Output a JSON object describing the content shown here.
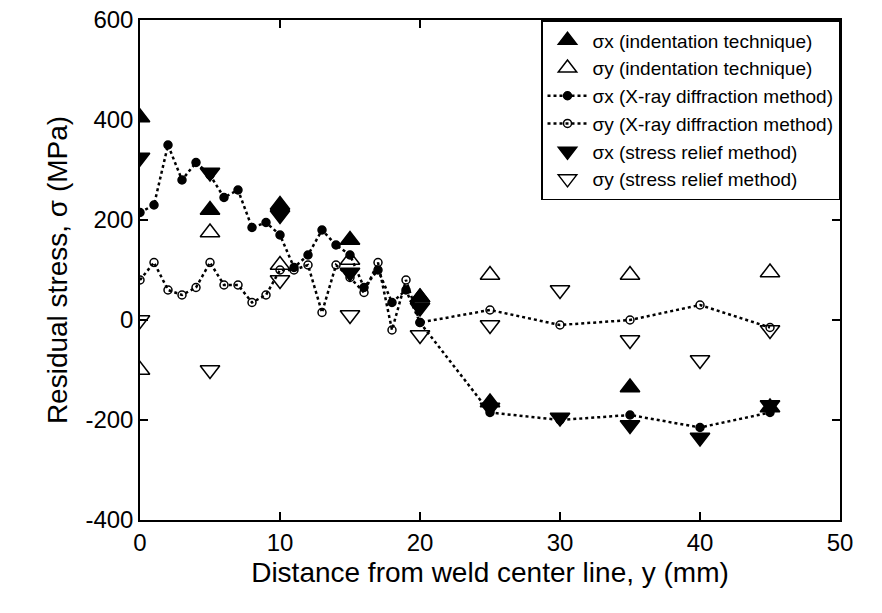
{
  "chart_data": {
    "type": "scatter",
    "x_label": "Distance from weld center line, y (mm)",
    "y_label": "Residual stress, σ (MPa)",
    "xlim": [
      0,
      50
    ],
    "xticks": [
      0,
      10,
      20,
      30,
      40,
      50
    ],
    "ylim": [
      -400,
      600
    ],
    "yticks": [
      -400,
      -200,
      0,
      200,
      400,
      600
    ],
    "grid": false,
    "legend": "upper right",
    "series": [
      {
        "name": "σx (indentation technique)",
        "color": "#000000",
        "marker": "triangle-up",
        "line_style": "none",
        "x": [
          0,
          5,
          10,
          15,
          20,
          25,
          35,
          45
        ],
        "values": [
          405,
          220,
          230,
          160,
          45,
          -165,
          -135,
          -175
        ]
      },
      {
        "name": "σy (indentation technique)",
        "color": "#000000",
        "marker": "triangle-up-open",
        "line_style": "none",
        "x": [
          0,
          5,
          10,
          15,
          20,
          25,
          35,
          45
        ],
        "values": [
          -100,
          175,
          110,
          120,
          45,
          90,
          90,
          95
        ]
      },
      {
        "name": "σx (X-ray diffraction method)",
        "color": "#000000",
        "marker": "circle",
        "line_style": "dotted",
        "x": [
          0,
          1,
          2,
          3,
          4,
          5,
          6,
          7,
          8,
          9,
          10,
          11,
          12,
          13,
          14,
          15,
          16,
          17,
          18,
          19,
          20,
          25,
          30,
          35,
          40,
          45
        ],
        "values": [
          215,
          230,
          350,
          280,
          315,
          290,
          245,
          260,
          185,
          195,
          170,
          105,
          130,
          180,
          150,
          130,
          65,
          100,
          35,
          60,
          -5,
          -185,
          -200,
          -190,
          -215,
          -185
        ]
      },
      {
        "name": "σy (X-ray diffraction method)",
        "color": "#000000",
        "marker": "circle-open",
        "line_style": "dotted",
        "x": [
          0,
          1,
          2,
          3,
          4,
          5,
          6,
          7,
          8,
          9,
          10,
          11,
          12,
          13,
          14,
          15,
          16,
          17,
          18,
          19,
          20,
          25,
          30,
          35,
          40,
          45
        ],
        "values": [
          80,
          115,
          60,
          50,
          65,
          115,
          70,
          70,
          35,
          50,
          100,
          100,
          110,
          15,
          110,
          85,
          55,
          115,
          -20,
          80,
          -5,
          20,
          -10,
          0,
          30,
          -15
        ]
      },
      {
        "name": "σx (stress relief method)",
        "color": "#000000",
        "marker": "triangle-down",
        "line_style": "none",
        "x": [
          0,
          5,
          10,
          15,
          20,
          25,
          30,
          35,
          40,
          45
        ],
        "values": [
          325,
          295,
          210,
          95,
          25,
          -175,
          -195,
          -210,
          -235,
          -170
        ]
      },
      {
        "name": "σy (stress relief method)",
        "color": "#000000",
        "marker": "triangle-down-open",
        "line_style": "none",
        "x": [
          0,
          5,
          10,
          15,
          20,
          25,
          30,
          35,
          40,
          45
        ],
        "values": [
          0,
          -100,
          80,
          10,
          -30,
          -10,
          60,
          -40,
          -80,
          -20
        ]
      }
    ]
  }
}
